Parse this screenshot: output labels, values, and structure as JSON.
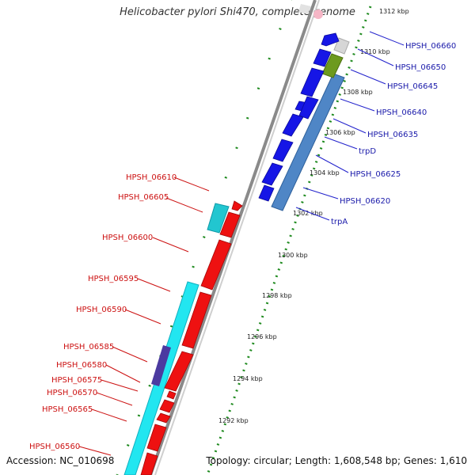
{
  "title": "Helicobacter pylori Shi470, complete genome",
  "accession": "Accession: NC_010698",
  "summary": "Topology: circular; Length: 1,608,548 bp; Genes: 1,610",
  "colors": {
    "forward_cds": "#1616e6",
    "reverse_cds": "#ee1111",
    "forward_gene": "#4f86c6",
    "reverse_gene": "#22e6f0",
    "backbone": "#8a8a8a",
    "ticks": "#1e8a1e",
    "olive": "#6d9a1e",
    "purple": "#4b3aa0"
  },
  "scale_labels": [
    "1312 kbp",
    "1310 kbp",
    "1308 kbp",
    "1306 kbp",
    "1304 kbp",
    "1302 kbp",
    "1300 kbp",
    "1298 kbp",
    "1296 kbp",
    "1294 kbp",
    "1292 kbp"
  ],
  "forward_labels": [
    "HPSH_06660",
    "HPSH_06650",
    "HPSH_06645",
    "HPSH_06640",
    "HPSH_06635",
    "trpD",
    "HPSH_06625",
    "HPSH_06620",
    "trpA"
  ],
  "reverse_labels": [
    "HPSH_06610",
    "HPSH_06605",
    "HPSH_06600",
    "HPSH_06595",
    "HPSH_06590",
    "HPSH_06585",
    "HPSH_06580",
    "HPSH_06575",
    "HPSH_06570",
    "HPSH_06565",
    "HPSH_06560"
  ]
}
